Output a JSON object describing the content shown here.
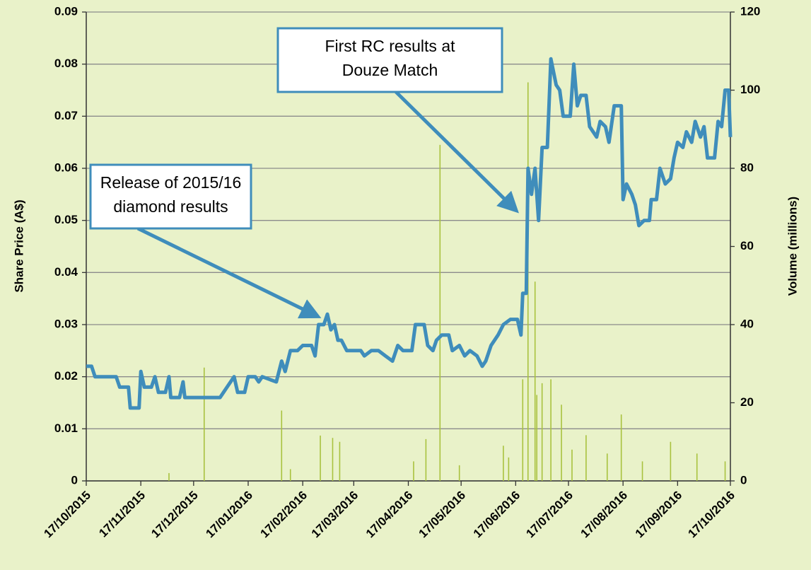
{
  "chart_data": {
    "type": "line",
    "y_label": "Share Price (A$)",
    "y2_label": "Volume (millions)",
    "xlim": [
      "2015-10-17",
      "2016-10-17"
    ],
    "xticks": [
      {
        "value": "2015-10-17",
        "label": "17/10/2015"
      },
      {
        "value": "2015-11-17",
        "label": "17/11/2015"
      },
      {
        "value": "2015-12-17",
        "label": "17/12/2015"
      },
      {
        "value": "2016-01-17",
        "label": "17/01/2016"
      },
      {
        "value": "2016-02-17",
        "label": "17/02/2016"
      },
      {
        "value": "2016-03-17",
        "label": "17/03/2016"
      },
      {
        "value": "2016-04-17",
        "label": "17/04/2016"
      },
      {
        "value": "2016-05-17",
        "label": "17/05/2016"
      },
      {
        "value": "2016-06-17",
        "label": "17/06/2016"
      },
      {
        "value": "2016-07-17",
        "label": "17/07/2016"
      },
      {
        "value": "2016-08-17",
        "label": "17/08/2016"
      },
      {
        "value": "2016-09-17",
        "label": "17/09/2016"
      },
      {
        "value": "2016-10-17",
        "label": "17/10/2016"
      }
    ],
    "ylim": [
      0,
      0.09
    ],
    "yticks": [
      0,
      0.01,
      0.02,
      0.03,
      0.04,
      0.05,
      0.06,
      0.07,
      0.08,
      0.09
    ],
    "y2lim": [
      0,
      120
    ],
    "y2ticks": [
      0,
      20,
      40,
      60,
      80,
      100,
      120
    ],
    "grid": true,
    "annotations": [
      {
        "lines": [
          "Release of 2015/16",
          "diamond results"
        ],
        "x": "2016-02-29",
        "y": 0.031
      },
      {
        "lines": [
          "First RC results at",
          "Douze Match"
        ],
        "x": "2016-06-20",
        "y": 0.051
      }
    ],
    "series": [
      {
        "type": "bar",
        "axis": "y2",
        "color": "#a9c23f",
        "x": [
          "2015-12-03",
          "2015-12-23",
          "2016-02-05",
          "2016-02-10",
          "2016-02-27",
          "2016-03-05",
          "2016-03-09",
          "2016-04-20",
          "2016-04-27",
          "2016-05-05",
          "2016-05-16",
          "2016-06-10",
          "2016-06-13",
          "2016-06-21",
          "2016-06-24",
          "2016-06-28",
          "2016-06-29",
          "2016-07-02",
          "2016-07-07",
          "2016-07-13",
          "2016-07-19",
          "2016-07-27",
          "2016-08-08",
          "2016-08-16",
          "2016-08-28",
          "2016-09-13",
          "2016-09-28",
          "2016-10-14"
        ],
        "values": [
          2,
          29,
          18,
          3,
          11.6,
          11,
          10,
          5,
          10.7,
          86,
          4,
          9,
          6,
          26,
          102,
          51,
          22,
          25,
          26,
          19.5,
          8,
          11.7,
          7,
          17,
          5,
          10,
          7,
          5
        ]
      },
      {
        "type": "line",
        "axis": "y",
        "color": "#3f8dbb",
        "x": [
          "2015-10-17",
          "2015-10-20",
          "2015-10-22",
          "2015-11-03",
          "2015-11-05",
          "2015-11-10",
          "2015-11-11",
          "2015-11-16",
          "2015-11-17",
          "2015-11-19",
          "2015-11-23",
          "2015-11-25",
          "2015-11-27",
          "2015-12-01",
          "2015-12-03",
          "2015-12-04",
          "2015-12-09",
          "2015-12-11",
          "2015-12-12",
          "2016-01-01",
          "2016-01-03",
          "2016-01-05",
          "2016-01-09",
          "2016-01-11",
          "2016-01-15",
          "2016-01-17",
          "2016-01-21",
          "2016-01-23",
          "2016-01-25",
          "2016-02-02",
          "2016-02-05",
          "2016-02-07",
          "2016-02-10",
          "2016-02-14",
          "2016-02-17",
          "2016-02-22",
          "2016-02-24",
          "2016-02-26",
          "2016-02-29",
          "2016-03-02",
          "2016-03-04",
          "2016-03-06",
          "2016-03-08",
          "2016-03-10",
          "2016-03-13",
          "2016-03-21",
          "2016-03-23",
          "2016-03-27",
          "2016-03-31",
          "2016-04-04",
          "2016-04-08",
          "2016-04-11",
          "2016-04-14",
          "2016-04-19",
          "2016-04-21",
          "2016-04-26",
          "2016-04-28",
          "2016-05-01",
          "2016-05-03",
          "2016-05-06",
          "2016-05-10",
          "2016-05-12",
          "2016-05-16",
          "2016-05-19",
          "2016-05-22",
          "2016-05-26",
          "2016-05-29",
          "2016-05-31",
          "2016-06-03",
          "2016-06-07",
          "2016-06-10",
          "2016-06-14",
          "2016-06-18",
          "2016-06-20",
          "2016-06-21",
          "2016-06-23",
          "2016-06-24",
          "2016-06-26",
          "2016-06-28",
          "2016-06-30",
          "2016-07-02",
          "2016-07-05",
          "2016-07-07",
          "2016-07-10",
          "2016-07-12",
          "2016-07-14",
          "2016-07-18",
          "2016-07-20",
          "2016-07-22",
          "2016-07-24",
          "2016-07-27",
          "2016-07-29",
          "2016-07-31",
          "2016-08-02",
          "2016-08-04",
          "2016-08-07",
          "2016-08-09",
          "2016-08-12",
          "2016-08-16",
          "2016-08-17",
          "2016-08-19",
          "2016-08-22",
          "2016-08-24",
          "2016-08-26",
          "2016-08-29",
          "2016-09-01",
          "2016-09-02",
          "2016-09-05",
          "2016-09-07",
          "2016-09-10",
          "2016-09-13",
          "2016-09-15",
          "2016-09-17",
          "2016-09-20",
          "2016-09-22",
          "2016-09-25",
          "2016-09-27",
          "2016-09-30",
          "2016-10-02",
          "2016-10-04",
          "2016-10-08",
          "2016-10-10",
          "2016-10-12",
          "2016-10-14",
          "2016-10-16",
          "2016-10-17"
        ],
        "values": [
          0.022,
          0.022,
          0.02,
          0.02,
          0.018,
          0.018,
          0.014,
          0.014,
          0.021,
          0.018,
          0.018,
          0.02,
          0.017,
          0.017,
          0.02,
          0.016,
          0.016,
          0.019,
          0.016,
          0.016,
          0.017,
          0.018,
          0.02,
          0.017,
          0.017,
          0.02,
          0.02,
          0.019,
          0.02,
          0.019,
          0.023,
          0.021,
          0.025,
          0.025,
          0.026,
          0.026,
          0.024,
          0.03,
          0.03,
          0.032,
          0.029,
          0.03,
          0.027,
          0.027,
          0.025,
          0.025,
          0.024,
          0.025,
          0.025,
          0.024,
          0.023,
          0.026,
          0.025,
          0.025,
          0.03,
          0.03,
          0.026,
          0.025,
          0.027,
          0.028,
          0.028,
          0.025,
          0.026,
          0.024,
          0.025,
          0.024,
          0.022,
          0.023,
          0.026,
          0.028,
          0.03,
          0.031,
          0.031,
          0.028,
          0.036,
          0.036,
          0.06,
          0.055,
          0.06,
          0.05,
          0.064,
          0.064,
          0.081,
          0.076,
          0.075,
          0.07,
          0.07,
          0.08,
          0.072,
          0.074,
          0.074,
          0.068,
          0.067,
          0.066,
          0.069,
          0.068,
          0.065,
          0.072,
          0.072,
          0.054,
          0.057,
          0.055,
          0.053,
          0.049,
          0.05,
          0.05,
          0.054,
          0.054,
          0.06,
          0.057,
          0.058,
          0.062,
          0.065,
          0.064,
          0.067,
          0.065,
          0.069,
          0.066,
          0.068,
          0.062,
          0.062,
          0.069,
          0.068,
          0.075,
          0.075,
          0.066
        ]
      }
    ]
  }
}
